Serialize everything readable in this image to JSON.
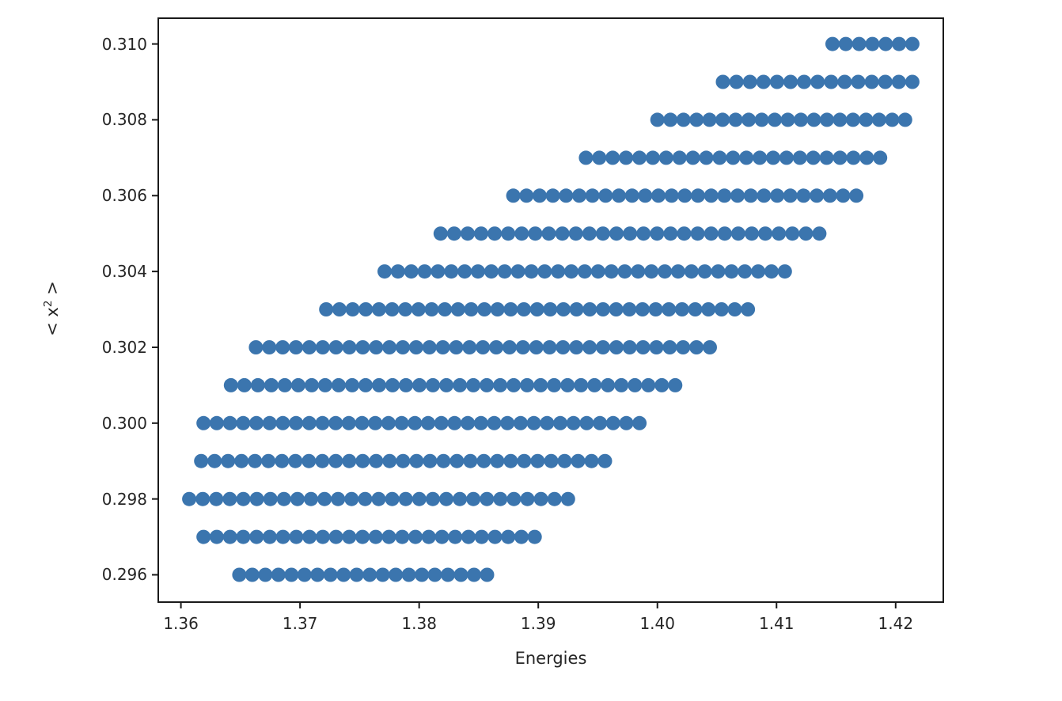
{
  "figure": {
    "background": "#ffffff",
    "xlabel": "Energies",
    "ylabel": {
      "pre": "< x",
      "sup": "2",
      "post": " >"
    }
  },
  "chart_data": {
    "type": "scatter",
    "title": "",
    "xlabel": "Energies",
    "ylabel": "< x^2 >",
    "x_tick_labels": [
      "1.36",
      "1.37",
      "1.38",
      "1.39",
      "1.40",
      "1.41",
      "1.42"
    ],
    "x_tick_values": [
      1.36,
      1.37,
      1.38,
      1.39,
      1.4,
      1.41,
      1.42
    ],
    "y_tick_labels": [
      "0.296",
      "0.298",
      "0.300",
      "0.302",
      "0.304",
      "0.306",
      "0.308",
      "0.310"
    ],
    "y_tick_values": [
      0.296,
      0.298,
      0.3,
      0.302,
      0.304,
      0.306,
      0.308,
      0.31
    ],
    "xlim": [
      1.3581,
      1.424
    ],
    "ylim": [
      0.29528,
      0.31068
    ],
    "grid": false,
    "legend": false,
    "axis_color": "#1a1a1a",
    "tick_label_color": "#262626",
    "marker": {
      "shape": "circle",
      "color": "#3b75ae",
      "radius_px": 9
    },
    "point_spacing_x": 0.00112,
    "rows": [
      {
        "y": 0.296,
        "x_start": 1.3649,
        "x_end": 1.3857
      },
      {
        "y": 0.297,
        "x_start": 1.3619,
        "x_end": 1.3897
      },
      {
        "y": 0.298,
        "x_start": 1.3607,
        "x_end": 1.3925
      },
      {
        "y": 0.299,
        "x_start": 1.3617,
        "x_end": 1.3956
      },
      {
        "y": 0.3,
        "x_start": 1.3619,
        "x_end": 1.3985
      },
      {
        "y": 0.301,
        "x_start": 1.3642,
        "x_end": 1.4015
      },
      {
        "y": 0.302,
        "x_start": 1.3663,
        "x_end": 1.4044
      },
      {
        "y": 0.303,
        "x_start": 1.3722,
        "x_end": 1.4076
      },
      {
        "y": 0.304,
        "x_start": 1.3771,
        "x_end": 1.4107
      },
      {
        "y": 0.305,
        "x_start": 1.3818,
        "x_end": 1.4136
      },
      {
        "y": 0.306,
        "x_start": 1.3879,
        "x_end": 1.4167
      },
      {
        "y": 0.307,
        "x_start": 1.394,
        "x_end": 1.4187
      },
      {
        "y": 0.308,
        "x_start": 1.4,
        "x_end": 1.4208
      },
      {
        "y": 0.309,
        "x_start": 1.4055,
        "x_end": 1.4214
      },
      {
        "y": 0.31,
        "x_start": 1.4147,
        "x_end": 1.4214
      }
    ]
  }
}
